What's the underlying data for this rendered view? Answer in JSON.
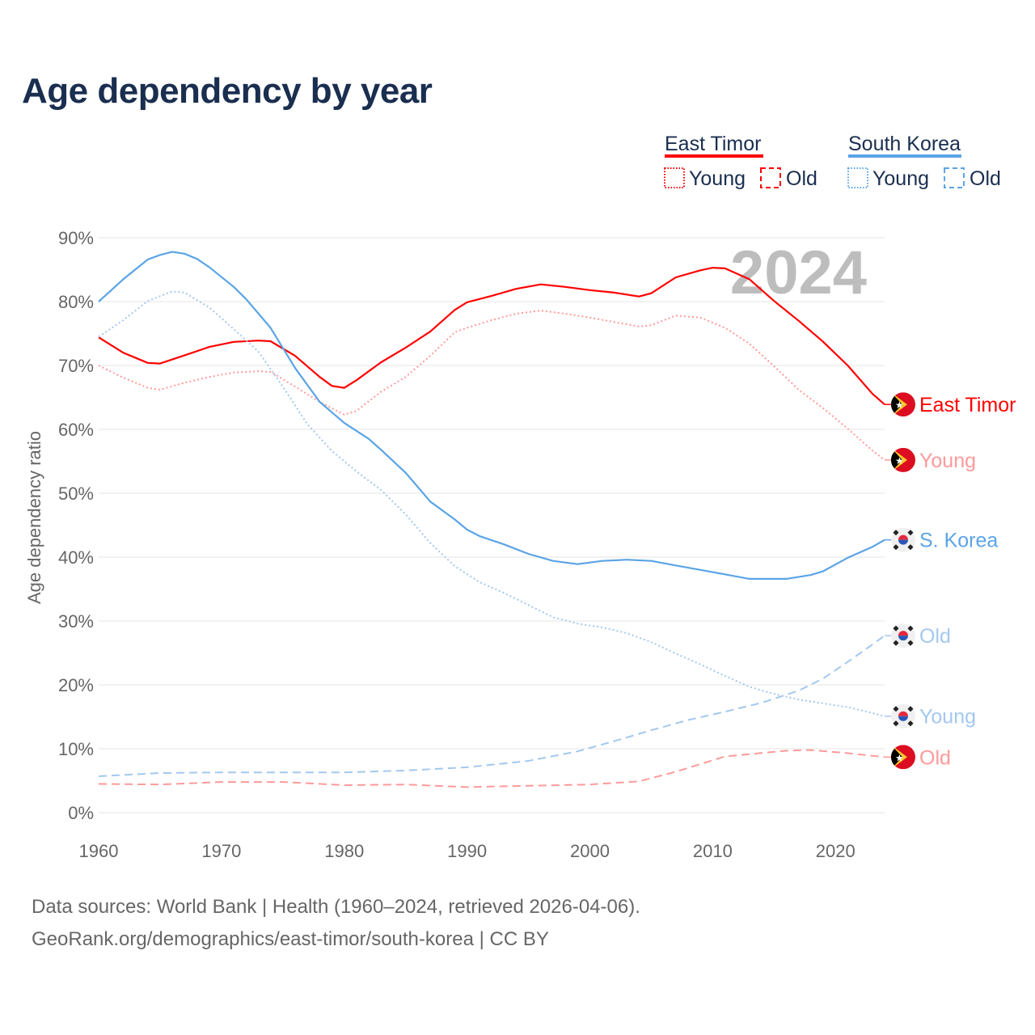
{
  "title": "Age dependency by year",
  "footer": {
    "line1": "Data sources: World Bank | Health (1960–2024, retrieved 2026-04-06).",
    "line2": "GeoRank.org/demographics/east-timor/south-korea | CC BY"
  },
  "legend": {
    "groups": [
      {
        "name": "East Timor",
        "color": "#ff0000",
        "items": [
          "Young",
          "Old"
        ]
      },
      {
        "name": "South Korea",
        "color": "#5ba4e6",
        "items": [
          "Young",
          "Old"
        ]
      }
    ]
  },
  "chart_data": {
    "type": "line",
    "title": "Age dependency by year",
    "xlabel": "",
    "ylabel": "Age dependency ratio",
    "year_watermark": "2024",
    "xlim": [
      1960,
      2024
    ],
    "ylim": [
      0,
      90
    ],
    "xticks": [
      1960,
      1970,
      1980,
      1990,
      2000,
      2010,
      2020
    ],
    "yticks": [
      0,
      10,
      20,
      30,
      40,
      50,
      60,
      70,
      80,
      90
    ],
    "ytick_labels": [
      "0%",
      "10%",
      "20%",
      "30%",
      "40%",
      "50%",
      "60%",
      "70%",
      "80%",
      "90%"
    ],
    "grid": true,
    "legend_position": "top-right",
    "series": [
      {
        "name": "East Timor",
        "label": "East Timor",
        "flag": "east-timor",
        "color": "#ff0000",
        "style": "solid",
        "x": [
          1960,
          1962,
          1964,
          1965,
          1967,
          1969,
          1971,
          1973,
          1974,
          1976,
          1978,
          1979,
          1980,
          1981,
          1983,
          1985,
          1987,
          1989,
          1990,
          1992,
          1994,
          1996,
          1998,
          2000,
          2002,
          2004,
          2005,
          2007,
          2009,
          2010,
          2011,
          2013,
          2015,
          2017,
          2019,
          2021,
          2023,
          2024
        ],
        "y": [
          74.4,
          72.0,
          70.4,
          70.3,
          71.6,
          72.9,
          73.7,
          73.9,
          73.8,
          71.5,
          68.2,
          66.8,
          66.5,
          67.7,
          70.5,
          72.8,
          75.3,
          78.7,
          79.9,
          80.9,
          82.0,
          82.7,
          82.3,
          81.8,
          81.4,
          80.8,
          81.3,
          83.8,
          84.9,
          85.3,
          85.2,
          83.5,
          80.1,
          77.0,
          73.7,
          70.0,
          65.6,
          63.9
        ]
      },
      {
        "name": "East Timor Young",
        "label": "Young",
        "flag": "east-timor",
        "color": "#ff9a9a",
        "style": "dotted",
        "x": [
          1960,
          1962,
          1964,
          1965,
          1967,
          1969,
          1971,
          1973,
          1974,
          1976,
          1978,
          1980,
          1981,
          1983,
          1985,
          1987,
          1989,
          1990,
          1992,
          1994,
          1996,
          1998,
          2000,
          2002,
          2004,
          2005,
          2007,
          2009,
          2011,
          2013,
          2015,
          2017,
          2019,
          2021,
          2023,
          2024
        ],
        "y": [
          70.0,
          68.1,
          66.5,
          66.2,
          67.3,
          68.2,
          68.9,
          69.1,
          69.0,
          66.7,
          64.3,
          62.3,
          62.9,
          65.9,
          68.2,
          71.5,
          75.2,
          75.9,
          77.1,
          78.1,
          78.6,
          78.1,
          77.5,
          76.8,
          76.1,
          76.3,
          77.8,
          77.5,
          75.9,
          73.4,
          69.9,
          66.2,
          63.3,
          60.1,
          56.7,
          55.2
        ]
      },
      {
        "name": "South Korea",
        "label": "S. Korea",
        "flag": "south-korea",
        "color": "#5ba4e6",
        "style": "solid",
        "x": [
          1960,
          1962,
          1964,
          1965,
          1966,
          1967,
          1968,
          1969,
          1971,
          1972,
          1974,
          1976,
          1978,
          1980,
          1982,
          1983,
          1985,
          1987,
          1989,
          1990,
          1991,
          1993,
          1995,
          1997,
          1999,
          2001,
          2003,
          2005,
          2007,
          2009,
          2011,
          2013,
          2016,
          2018,
          2019,
          2021,
          2023,
          2024
        ],
        "y": [
          80.0,
          83.5,
          86.6,
          87.3,
          87.8,
          87.5,
          86.7,
          85.4,
          82.3,
          80.4,
          75.9,
          69.6,
          64.3,
          61.0,
          58.5,
          56.8,
          53.2,
          48.7,
          45.9,
          44.3,
          43.3,
          42.0,
          40.5,
          39.4,
          38.9,
          39.4,
          39.6,
          39.4,
          38.7,
          38.0,
          37.3,
          36.6,
          36.6,
          37.2,
          37.8,
          39.9,
          41.6,
          42.7
        ]
      },
      {
        "name": "South Korea Old",
        "label": "Old",
        "flag": "south-korea",
        "color": "#a3c8f0",
        "style": "dashed",
        "x": [
          1960,
          1965,
          1970,
          1975,
          1980,
          1985,
          1990,
          1995,
          1999,
          2002,
          2005,
          2008,
          2011,
          2014,
          2017,
          2019,
          2021,
          2023,
          2024
        ],
        "y": [
          5.7,
          6.2,
          6.3,
          6.3,
          6.3,
          6.6,
          7.1,
          8.1,
          9.6,
          11.2,
          12.9,
          14.5,
          15.8,
          17.2,
          19.1,
          21.0,
          23.6,
          26.3,
          27.7
        ]
      },
      {
        "name": "South Korea Young",
        "label": "Young",
        "flag": "south-korea",
        "color": "#a3c8f0",
        "style": "dotted",
        "x": [
          1960,
          1962,
          1964,
          1966,
          1967,
          1969,
          1971,
          1973,
          1975,
          1977,
          1979,
          1981,
          1983,
          1985,
          1987,
          1989,
          1991,
          1993,
          1995,
          1997,
          1999,
          2001,
          2003,
          2005,
          2007,
          2009,
          2011,
          2013,
          2015,
          2017,
          2019,
          2021,
          2023,
          2024
        ],
        "y": [
          74.5,
          77.1,
          80.1,
          81.6,
          81.4,
          79.1,
          75.7,
          72.2,
          66.7,
          60.8,
          56.6,
          53.4,
          50.5,
          46.7,
          42.2,
          38.6,
          36.1,
          34.4,
          32.5,
          30.6,
          29.6,
          29.0,
          28.1,
          26.7,
          24.9,
          23.2,
          21.4,
          19.7,
          18.6,
          17.7,
          17.1,
          16.5,
          15.6,
          15.1
        ]
      },
      {
        "name": "East Timor Old",
        "label": "Old",
        "flag": "east-timor",
        "color": "#ff9a9a",
        "style": "dashed",
        "x": [
          1960,
          1965,
          1970,
          1975,
          1980,
          1985,
          1990,
          1995,
          2000,
          2004,
          2007,
          2011,
          2016,
          2018,
          2021,
          2024
        ],
        "y": [
          4.5,
          4.4,
          4.8,
          4.8,
          4.3,
          4.4,
          4.0,
          4.2,
          4.4,
          4.9,
          6.4,
          8.8,
          9.7,
          9.8,
          9.3,
          8.7
        ]
      }
    ]
  }
}
